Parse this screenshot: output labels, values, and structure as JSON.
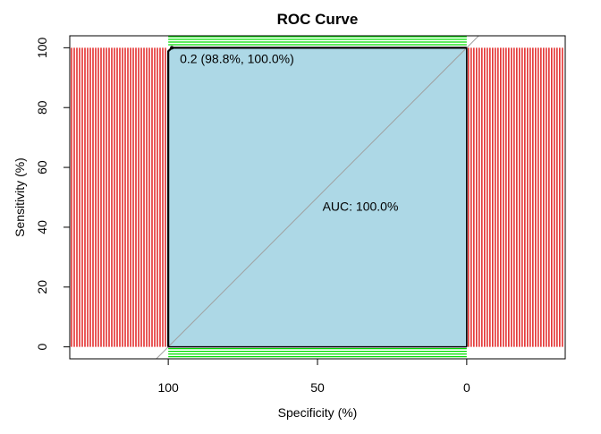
{
  "chart_data": {
    "type": "line",
    "title": "ROC Curve",
    "xlabel": "Specificity (%)",
    "ylabel": "Sensitivity (%)",
    "x_axis_reversed": true,
    "xlim": [
      133,
      -33
    ],
    "ylim": [
      -4,
      104
    ],
    "x_ticks": [
      "100",
      "50",
      "0"
    ],
    "x_tick_values": [
      100,
      50,
      0
    ],
    "y_ticks": [
      "0",
      "20",
      "40",
      "60",
      "80",
      "100"
    ],
    "y_tick_values": [
      0,
      20,
      40,
      60,
      80,
      100
    ],
    "series": [
      {
        "x": [
          100,
          100,
          98.8,
          0
        ],
        "y": [
          0,
          98.8,
          100,
          100
        ]
      }
    ],
    "auc_label": "AUC: 100.0%",
    "auc_position": [
      50,
      47
    ],
    "best_threshold_label": "0.2 (98.8%, 100.0%)",
    "best_threshold_point": [
      98.8,
      100
    ],
    "auc_fill_color": "#add8e6",
    "specificity_ci_color": "#dd0000",
    "sensitivity_ci_color": "#00dd00",
    "grid": false
  }
}
